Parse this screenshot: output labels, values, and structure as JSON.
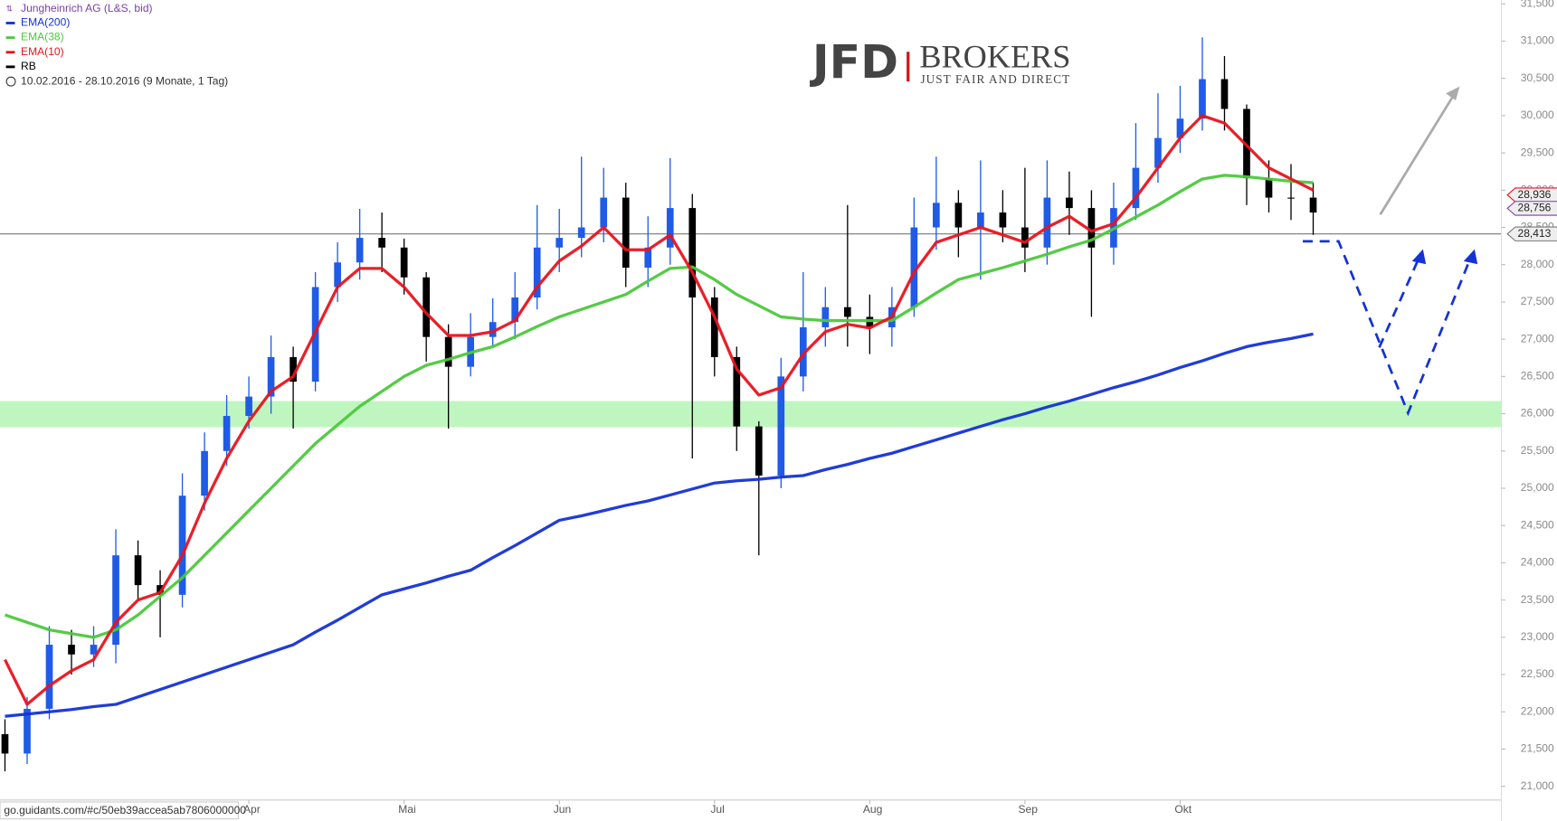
{
  "chart_data": {
    "type": "candlestick",
    "title": "Jungheinrich AG (L&S, bid)",
    "subtitle": "10.02.2016 - 28.10.2016 (9 Monate, 1 Tag)",
    "source_url": "go.guidants.com/#c/50eb39accea5ab7806000000",
    "logo": {
      "mark": "JFD",
      "name": "BROKERS",
      "tagline": "JUST FAIR AND DIRECT"
    },
    "categories": [
      null,
      null,
      null,
      null,
      null,
      null,
      null,
      null,
      null,
      null,
      null,
      "Apr",
      null,
      null,
      null,
      null,
      null,
      null,
      "Mai",
      null,
      null,
      null,
      null,
      null,
      null,
      "Jun",
      null,
      null,
      null,
      null,
      null,
      null,
      "Jul",
      null,
      null,
      null,
      null,
      null,
      null,
      "Aug",
      null,
      null,
      null,
      null,
      null,
      null,
      "Sep",
      null,
      null,
      null,
      null,
      null,
      null,
      "Okt",
      null,
      null,
      null,
      null,
      null,
      null
    ],
    "candles": {
      "name": "RB",
      "color": "#000000",
      "up_color": "#1f5be6",
      "open": [
        21700,
        21440,
        22040,
        22900,
        22770,
        22900,
        24100,
        23700,
        23570,
        24900,
        25500,
        25970,
        26230,
        26760,
        26430,
        27700,
        28030,
        28360,
        28230,
        27830,
        27030,
        26630,
        27030,
        27230,
        27560,
        28230,
        28360,
        28500,
        28900,
        27960,
        28230,
        28760,
        27560,
        26760,
        25830,
        25170,
        26500,
        27160,
        27430,
        27300,
        27160,
        27430,
        28500,
        28830,
        28500,
        28700,
        28500,
        28230,
        28900,
        28760,
        28230,
        28760,
        29300,
        29700,
        29960,
        30490,
        30090,
        29160,
        28900,
        28900
      ],
      "high": [
        21900,
        22200,
        23150,
        23100,
        23150,
        24450,
        24300,
        23900,
        25200,
        25750,
        26250,
        26500,
        27050,
        26900,
        27900,
        28300,
        28750,
        28700,
        28350,
        27900,
        27200,
        27350,
        27550,
        27900,
        28800,
        28750,
        29450,
        29300,
        29100,
        28650,
        29430,
        28950,
        27700,
        26900,
        25900,
        26750,
        27900,
        27700,
        28800,
        27600,
        27700,
        28900,
        29450,
        29000,
        29400,
        29000,
        29300,
        29400,
        29250,
        29000,
        29100,
        29900,
        30300,
        30400,
        31050,
        30800,
        30150,
        29400,
        29350,
        29100
      ],
      "low": [
        21200,
        21300,
        21900,
        22500,
        22600,
        22650,
        23500,
        23000,
        23400,
        24700,
        25300,
        25800,
        26000,
        25800,
        26300,
        27500,
        27800,
        27900,
        27600,
        26700,
        25800,
        26500,
        26900,
        27000,
        27400,
        27900,
        28100,
        28300,
        27700,
        27700,
        28000,
        25400,
        26500,
        25500,
        24100,
        25000,
        26300,
        26900,
        26900,
        26800,
        26900,
        27300,
        28200,
        28100,
        27800,
        28300,
        27900,
        28000,
        28400,
        27300,
        28000,
        28600,
        29100,
        29500,
        29800,
        29800,
        28800,
        28700,
        28600,
        28400
      ],
      "close": [
        21440,
        22040,
        22900,
        22770,
        22900,
        24100,
        23700,
        23570,
        24900,
        25500,
        25970,
        26230,
        26760,
        26430,
        27700,
        28030,
        28360,
        28230,
        27830,
        27030,
        26630,
        27030,
        27230,
        27560,
        28230,
        28360,
        28500,
        28900,
        27960,
        28230,
        28760,
        27560,
        26760,
        25830,
        25170,
        26500,
        27160,
        27430,
        27300,
        27160,
        27430,
        28500,
        28830,
        28500,
        28700,
        28500,
        28230,
        28900,
        28760,
        28230,
        28760,
        29300,
        29700,
        29960,
        30490,
        30090,
        29160,
        28900,
        28900,
        28700
      ]
    },
    "series": [
      {
        "name": "EMA(200)",
        "color": "#1432d6",
        "values": [
          21940,
          21970,
          22000,
          22030,
          22070,
          22100,
          22200,
          22300,
          22400,
          22500,
          22600,
          22700,
          22800,
          22900,
          23070,
          23230,
          23400,
          23570,
          23650,
          23730,
          23820,
          23900,
          24070,
          24230,
          24400,
          24570,
          24630,
          24700,
          24770,
          24830,
          24910,
          24990,
          25070,
          25100,
          25120,
          25150,
          25170,
          25250,
          25320,
          25400,
          25470,
          25560,
          25650,
          25740,
          25830,
          25920,
          26000,
          26090,
          26170,
          26260,
          26350,
          26430,
          26520,
          26620,
          26710,
          26810,
          26900,
          26960,
          27010,
          27070
        ]
      },
      {
        "name": "EMA(38)",
        "color": "#4cc83c",
        "values": [
          23300,
          23200,
          23100,
          23050,
          23000,
          23100,
          23300,
          23550,
          23800,
          24100,
          24400,
          24700,
          25000,
          25300,
          25600,
          25850,
          26100,
          26300,
          26500,
          26650,
          26730,
          26820,
          26900,
          27030,
          27170,
          27300,
          27400,
          27500,
          27600,
          27780,
          27950,
          27970,
          27800,
          27600,
          27450,
          27300,
          27270,
          27250,
          27250,
          27250,
          27250,
          27430,
          27620,
          27800,
          27880,
          27960,
          28050,
          28140,
          28240,
          28330,
          28480,
          28640,
          28800,
          28980,
          29150,
          29200,
          29180,
          29150,
          29120,
          29100
        ]
      },
      {
        "name": "EMA(10)",
        "color": "#e8141e",
        "values": [
          22700,
          22100,
          22350,
          22550,
          22700,
          23200,
          23500,
          23600,
          24100,
          24800,
          25400,
          25900,
          26300,
          26500,
          27100,
          27700,
          27950,
          27950,
          27700,
          27350,
          27050,
          27050,
          27100,
          27250,
          27700,
          28050,
          28250,
          28500,
          28200,
          28200,
          28400,
          27900,
          27300,
          26600,
          26250,
          26350,
          26800,
          27100,
          27200,
          27150,
          27300,
          27900,
          28300,
          28400,
          28500,
          28400,
          28300,
          28500,
          28650,
          28450,
          28550,
          28900,
          29300,
          29700,
          30000,
          29900,
          29600,
          29300,
          29150,
          29000
        ]
      }
    ],
    "ylim": [
      20550,
      31550
    ],
    "yticks": [
      {
        "value": 21000,
        "label": "21,000"
      },
      {
        "value": 21500,
        "label": "21,500"
      },
      {
        "value": 22000,
        "label": "22,000"
      },
      {
        "value": 22500,
        "label": "22,500"
      },
      {
        "value": 23000,
        "label": "23,000"
      },
      {
        "value": 23500,
        "label": "23,500"
      },
      {
        "value": 24000,
        "label": "24,000"
      },
      {
        "value": 24500,
        "label": "24,500"
      },
      {
        "value": 25000,
        "label": "25,000"
      },
      {
        "value": 25500,
        "label": "25,500"
      },
      {
        "value": 26000,
        "label": "26,000"
      },
      {
        "value": 26500,
        "label": "26,500"
      },
      {
        "value": 27000,
        "label": "27,000"
      },
      {
        "value": 27500,
        "label": "27,500"
      },
      {
        "value": 28000,
        "label": "28,000"
      },
      {
        "value": 28500,
        "label": "28,500"
      },
      {
        "value": 29000,
        "label": "29,000"
      },
      {
        "value": 29500,
        "label": "29,500"
      },
      {
        "value": 30000,
        "label": "30,000"
      },
      {
        "value": 30500,
        "label": "30,500"
      },
      {
        "value": 31000,
        "label": "31,000"
      },
      {
        "value": 31500,
        "label": "31,500"
      }
    ],
    "zone": {
      "values": [
        25820,
        26170
      ],
      "color": "#b4f5b4"
    },
    "hline": {
      "value": 28413,
      "label": "28,413"
    },
    "price_labels": [
      {
        "value": 28936,
        "label": "28,936",
        "color": "#e8141e"
      },
      {
        "value": 28756,
        "label": "28,756",
        "color": "#7a3fa8"
      }
    ]
  }
}
